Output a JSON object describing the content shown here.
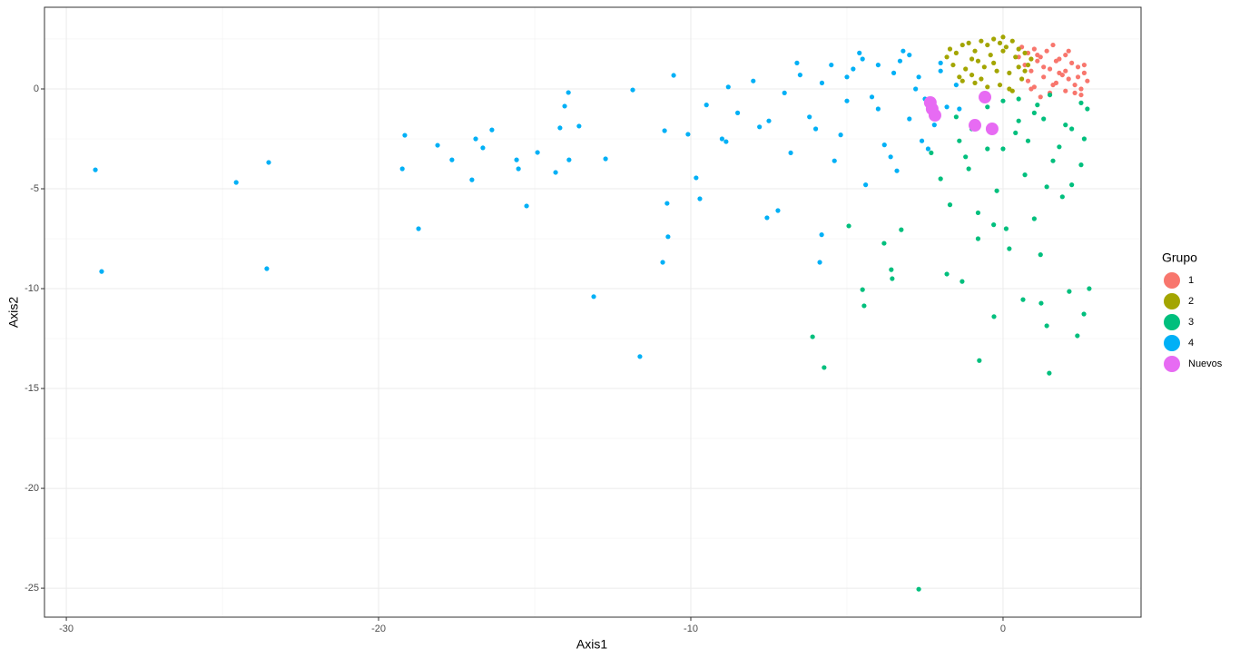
{
  "chart_data": {
    "type": "scatter",
    "x_label": "Axis1",
    "y_label": "Axis2",
    "legend_title": "Grupo",
    "legend": "right",
    "grid": true,
    "xlim": [
      -30.7,
      4.42
    ],
    "ylim": [
      -26.45,
      4.09
    ],
    "xticks": [
      -30,
      -20,
      -10,
      0
    ],
    "yticks": [
      0,
      -5,
      -10,
      -15,
      -20,
      -25
    ],
    "series": [
      {
        "name": "1",
        "color": "#F8766D",
        "x": [
          0.6,
          0.8,
          1.0,
          1.2,
          1.4,
          1.6,
          1.8,
          2.0,
          2.2,
          2.4,
          2.6,
          2.7,
          0.7,
          0.9,
          1.1,
          1.3,
          1.5,
          1.7,
          1.9,
          2.1,
          2.3,
          2.5,
          0.5,
          1.0,
          1.5,
          2.0,
          2.5,
          0.8,
          1.2,
          1.6,
          2.0,
          2.4,
          0.9,
          1.3,
          1.7,
          2.1,
          2.6,
          1.1,
          1.8,
          2.3
        ],
        "y": [
          2.1,
          1.8,
          2.0,
          1.6,
          1.9,
          2.2,
          1.5,
          1.7,
          1.3,
          1.1,
          0.8,
          0.4,
          1.2,
          0.9,
          1.4,
          0.6,
          1.0,
          0.3,
          0.7,
          0.5,
          0.2,
          0.0,
          1.6,
          0.1,
          -0.2,
          0.9,
          -0.3,
          0.4,
          -0.4,
          0.2,
          -0.1,
          0.6,
          0.0,
          1.1,
          1.4,
          1.9,
          1.2,
          1.7,
          0.8,
          -0.2
        ]
      },
      {
        "name": "2",
        "color": "#A3A500",
        "x": [
          -1.7,
          -1.5,
          -1.3,
          -1.1,
          -0.9,
          -0.7,
          -0.5,
          -0.3,
          -0.1,
          0.1,
          0.3,
          0.5,
          0.7,
          0.9,
          -1.6,
          -1.2,
          -0.8,
          -0.4,
          0.0,
          0.4,
          0.8,
          -1.4,
          -1.0,
          -0.6,
          -0.2,
          0.2,
          0.6,
          -1.8,
          -0.9,
          -0.1,
          0.7,
          -1.3,
          -0.5,
          0.3,
          -0.7,
          0.0,
          -0.3,
          0.5,
          -1.0,
          0.2
        ],
        "y": [
          2.0,
          1.8,
          2.2,
          2.3,
          1.9,
          2.4,
          2.2,
          2.5,
          2.3,
          2.1,
          2.4,
          2.0,
          1.8,
          1.5,
          1.2,
          1.0,
          1.4,
          1.7,
          1.9,
          1.6,
          1.2,
          0.6,
          0.7,
          1.1,
          0.9,
          0.8,
          0.5,
          1.6,
          0.3,
          0.2,
          0.9,
          0.4,
          0.1,
          -0.1,
          0.5,
          2.6,
          1.3,
          1.1,
          1.5,
          0.0
        ]
      },
      {
        "name": "3",
        "color": "#00BF7D",
        "x": [
          -2.3,
          -2.0,
          -1.7,
          -1.4,
          -1.1,
          -0.8,
          -0.5,
          -0.2,
          0.1,
          0.4,
          0.7,
          1.0,
          1.3,
          1.6,
          1.9,
          2.2,
          2.5,
          2.7,
          -1.5,
          -1.0,
          -0.5,
          0.0,
          0.5,
          1.0,
          1.5,
          2.0,
          2.5,
          -0.8,
          0.2,
          1.2,
          2.2,
          -0.3,
          0.8,
          1.8,
          0.5,
          1.4,
          -1.2,
          2.6,
          0.0,
          1.1,
          -2.7,
          -6.1,
          -5.73,
          -0.76,
          1.48,
          -0.29,
          1.4,
          2.38,
          2.59,
          2.76,
          0.64,
          1.22,
          2.12,
          -4.5,
          -4.45,
          -1.8,
          -1.31,
          -3.58,
          -3.55,
          -3.81,
          -3.26,
          -4.94
        ],
        "y": [
          -3.2,
          -4.5,
          -5.8,
          -2.6,
          -4.0,
          -6.2,
          -3.0,
          -5.1,
          -7.0,
          -2.2,
          -4.3,
          -6.5,
          -1.5,
          -3.6,
          -5.4,
          -2.0,
          -3.8,
          -1.0,
          -1.4,
          -2.0,
          -0.9,
          -3.0,
          -0.5,
          -1.2,
          -0.3,
          -1.8,
          -0.7,
          -7.5,
          -8.0,
          -8.3,
          -4.8,
          -6.8,
          -2.6,
          -2.9,
          -1.6,
          -4.9,
          -3.4,
          -2.5,
          -0.6,
          -0.8,
          -25.05,
          -12.41,
          -13.95,
          -13.6,
          -14.23,
          -11.4,
          -11.86,
          -12.36,
          -11.27,
          -10.0,
          -10.55,
          -10.73,
          -10.14,
          -10.05,
          -10.86,
          -9.27,
          -9.64,
          -9.05,
          -9.5,
          -7.73,
          -7.05,
          -6.86
        ]
      },
      {
        "name": "4",
        "color": "#00B0F6",
        "x": [
          -29.07,
          -28.87,
          -24.56,
          -23.52,
          -23.58,
          -19.16,
          -19.24,
          -18.72,
          -18.11,
          -17.65,
          -17.01,
          -16.89,
          -16.66,
          -16.37,
          -15.58,
          -15.52,
          -15.26,
          -14.91,
          -14.33,
          -14.19,
          -14.04,
          -13.92,
          -13.9,
          -13.58,
          -13.11,
          -12.73,
          -11.86,
          -11.63,
          -10.9,
          -10.76,
          -10.73,
          -10.84,
          -10.55,
          -10.09,
          -9.83,
          -9.71,
          -8.87,
          -7.56,
          -7.21,
          -5.87,
          -5.81,
          -9.5,
          -9.0,
          -8.5,
          -8.0,
          -7.5,
          -7.0,
          -6.5,
          -6.0,
          -5.5,
          -5.0,
          -4.5,
          -4.0,
          -3.5,
          -3.0,
          -2.5,
          -2.0,
          -1.5,
          -6.8,
          -6.2,
          -5.8,
          -5.2,
          -4.8,
          -4.2,
          -3.8,
          -3.2,
          -2.8,
          -2.2,
          -1.8,
          -4.6,
          -3.6,
          -2.6,
          -5.4,
          -4.4,
          -3.4,
          -2.4,
          -7.8,
          -8.8,
          -6.6,
          -5.0,
          -3.0,
          -2.0,
          -4.0,
          -1.4,
          -3.3,
          -2.7
        ],
        "y": [
          -4.05,
          -9.14,
          -4.68,
          -3.68,
          -9.0,
          -2.32,
          -4.0,
          -7.0,
          -2.82,
          -3.55,
          -4.55,
          -2.5,
          -2.95,
          -2.05,
          -3.55,
          -4.0,
          -5.86,
          -3.18,
          -4.18,
          -1.95,
          -0.86,
          -0.18,
          -3.55,
          -1.86,
          -10.4,
          -3.5,
          -0.05,
          -13.4,
          -8.68,
          -5.73,
          -7.4,
          -2.09,
          0.68,
          -2.27,
          -4.45,
          -5.5,
          -2.64,
          -6.45,
          -6.09,
          -8.68,
          -7.3,
          -0.8,
          -2.5,
          -1.2,
          0.4,
          -1.6,
          -0.2,
          0.7,
          -2.0,
          1.2,
          -0.6,
          1.5,
          -1.0,
          0.8,
          1.7,
          -0.5,
          1.3,
          0.2,
          -3.2,
          -1.4,
          0.3,
          -2.3,
          1.0,
          -0.4,
          -2.8,
          1.9,
          0.0,
          -1.8,
          -0.9,
          1.8,
          -3.4,
          -2.6,
          -3.6,
          -4.8,
          -4.1,
          -3.0,
          -1.9,
          0.1,
          1.3,
          0.6,
          -1.5,
          0.9,
          1.2,
          -1.0,
          1.4,
          0.6
        ]
      },
      {
        "name": "Nuevos",
        "color": "#E76BF3",
        "big": true,
        "x": [
          -2.33,
          -2.18,
          -0.58,
          -0.9,
          -0.35,
          -2.27
        ],
        "y": [
          -0.68,
          -1.32,
          -0.41,
          -1.82,
          -2.0,
          -1.0
        ]
      }
    ]
  }
}
